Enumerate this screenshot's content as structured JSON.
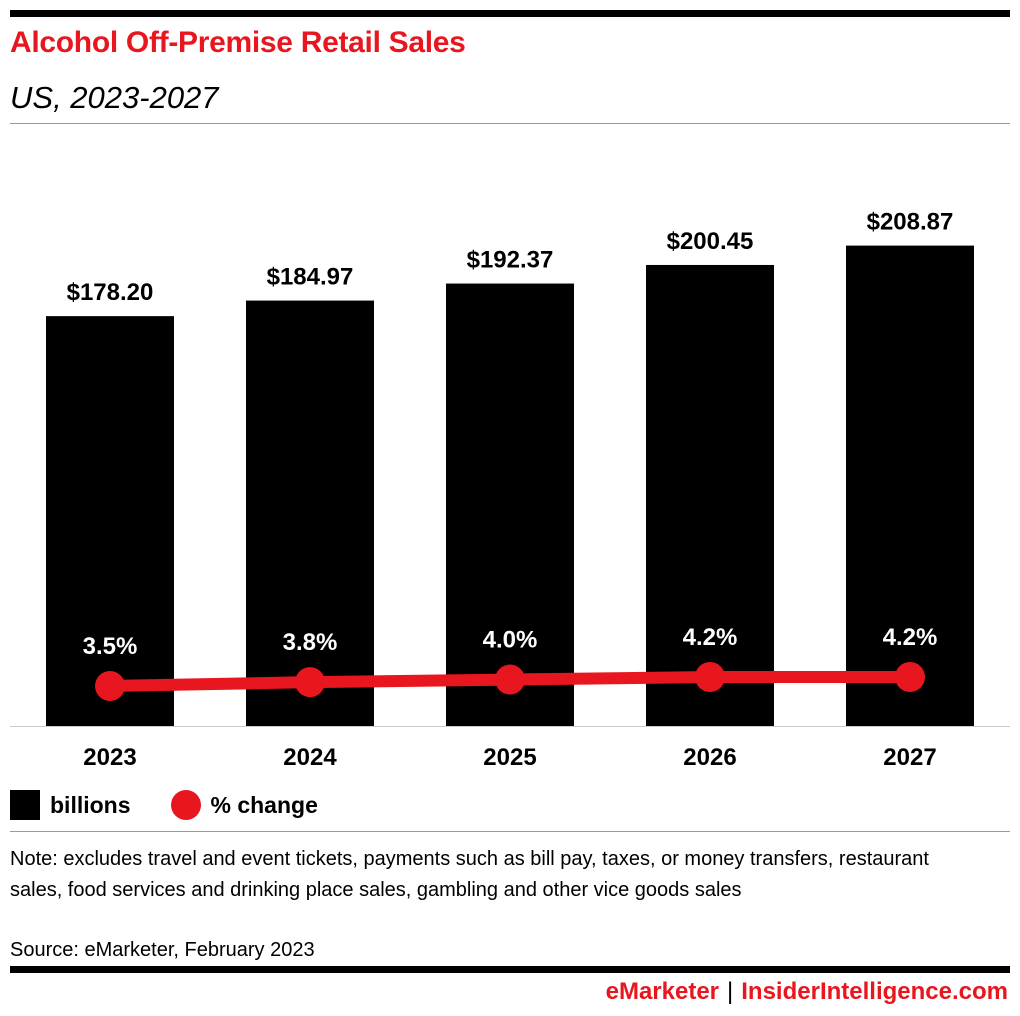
{
  "header": {
    "title": "Alcohol Off-Premise Retail Sales",
    "subtitle": "US, 2023-2027"
  },
  "chart_data": {
    "type": "bar",
    "title": "Alcohol Off-Premise Retail Sales",
    "subtitle": "US, 2023-2027",
    "categories": [
      "2023",
      "2024",
      "2025",
      "2026",
      "2027"
    ],
    "series": [
      {
        "name": "billions",
        "type": "bar",
        "values": [
          178.2,
          184.97,
          192.37,
          200.45,
          208.87
        ],
        "labels": [
          "$178.20",
          "$184.97",
          "$192.37",
          "$200.45",
          "$208.87"
        ],
        "color": "#000000"
      },
      {
        "name": "% change",
        "type": "line",
        "values": [
          3.5,
          3.8,
          4.0,
          4.2,
          4.2
        ],
        "labels": [
          "3.5%",
          "3.8%",
          "4.0%",
          "4.2%",
          "4.2%"
        ],
        "color": "#e8161e"
      }
    ],
    "grid": false,
    "legend": "bottom-left"
  },
  "legend": {
    "bar": "billions",
    "line": "% change"
  },
  "note": "Note: excludes travel and event tickets, payments such as bill pay, taxes, or money transfers, restaurant sales, food services and drinking place sales, gambling and other vice goods sales",
  "source": "Source: eMarketer, February 2023",
  "footer": {
    "brand1": "eMarketer",
    "separator": "|",
    "brand2": "InsiderIntelligence.com"
  }
}
